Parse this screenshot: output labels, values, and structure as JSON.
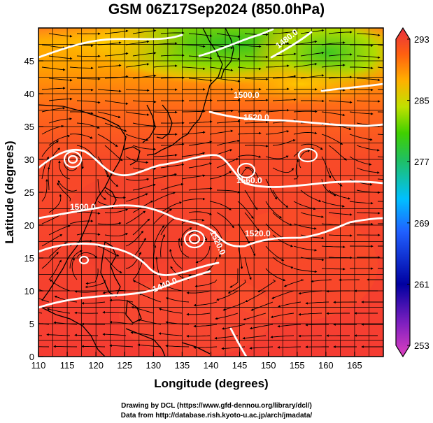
{
  "title": "GSM 06Z17Sep2024 (850.0hPa)",
  "x_axis": {
    "label": "Longitude (degrees)",
    "range": [
      110,
      170
    ],
    "ticks": [
      "110",
      "115",
      "120",
      "125",
      "130",
      "135",
      "140",
      "145",
      "150",
      "155",
      "160",
      "165"
    ]
  },
  "y_axis": {
    "label": "Latitude (degrees)",
    "range": [
      0,
      50
    ],
    "ticks": [
      "0",
      "5",
      "10",
      "15",
      "20",
      "25",
      "30",
      "35",
      "40",
      "45"
    ]
  },
  "colorbar": {
    "ticks": [
      "253",
      "261",
      "269",
      "277",
      "285",
      "293"
    ],
    "range": [
      253,
      293
    ],
    "colors": [
      "#e040c0",
      "#0000a0",
      "#2040ff",
      "#00c0ff",
      "#20c060",
      "#40d000",
      "#c0e000",
      "#ffb000",
      "#ff6010",
      "#e83040"
    ]
  },
  "contour_labels": [
    "1480.0",
    "1500.0",
    "1520.0",
    "1560.0",
    "1520.0",
    "1520.0",
    "1500.0",
    "1440.0"
  ],
  "field_colors": {
    "north": "#20c020",
    "midnorth": "#c8d800",
    "mid": "#ffa000",
    "south": "#ff5a14",
    "tropical": "#f53c32"
  },
  "credits": [
    "Drawing by DCL (https://www.gfd-dennou.org/library/dcl/)",
    "Data from http://database.rish.kyoto-u.ac.jp/arch/jmadata/"
  ]
}
